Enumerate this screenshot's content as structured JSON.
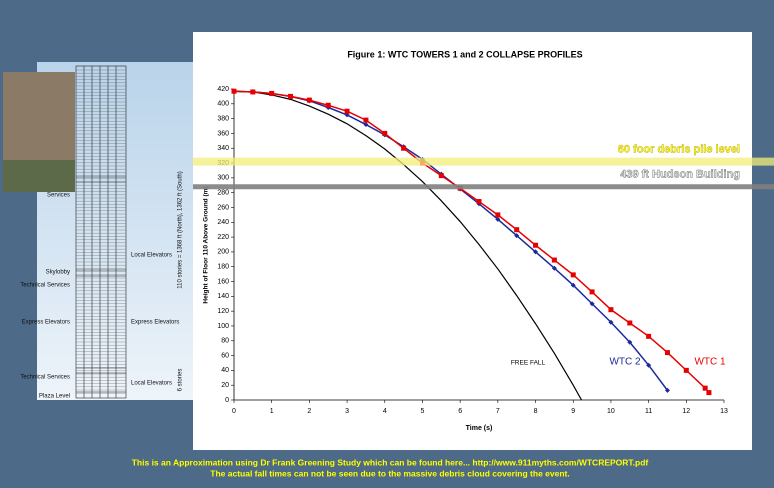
{
  "chart_data": {
    "type": "line",
    "title": "Figure 1: WTC TOWERS 1 and 2 COLLAPSE PROFILES",
    "xlabel": "Time (s)",
    "ylabel": "Height of Floor 110 Above Ground (m)",
    "xlim": [
      0,
      13
    ],
    "xticks": [
      0,
      1,
      2,
      3,
      4,
      5,
      6,
      7,
      8,
      9,
      10,
      11,
      12,
      13
    ],
    "ylim": [
      0,
      420
    ],
    "yticks": [
      0,
      20,
      40,
      60,
      80,
      100,
      120,
      140,
      160,
      180,
      200,
      220,
      240,
      260,
      280,
      300,
      320,
      340,
      360,
      380,
      400,
      420
    ],
    "series": [
      {
        "name": "FREE FALL",
        "color": "#000000",
        "marker": "none",
        "x": [
          0,
          0.5,
          1,
          1.5,
          2,
          2.5,
          3,
          3.5,
          4,
          4.5,
          5,
          5.5,
          6,
          6.5,
          7,
          7.5,
          8,
          8.5,
          9,
          9.22
        ],
        "values": [
          417,
          416,
          412,
          406,
          397,
          386,
          373,
          357,
          339,
          318,
          295,
          269,
          241,
          210,
          177,
          141,
          103,
          63,
          20,
          0
        ]
      },
      {
        "name": "WTC 2",
        "color": "#1c2a9c",
        "marker": "diamond",
        "x": [
          0,
          0.5,
          1,
          1.5,
          2,
          2.5,
          3,
          3.5,
          4,
          4.5,
          5,
          5.5,
          6,
          6.5,
          7,
          7.5,
          8,
          8.5,
          9,
          9.5,
          10,
          10.5,
          11,
          11.5
        ],
        "values": [
          417,
          416,
          414,
          410,
          404,
          395,
          385,
          372,
          358,
          342,
          325,
          305,
          285,
          265,
          244,
          222,
          200,
          178,
          155,
          130,
          105,
          78,
          47,
          13
        ]
      },
      {
        "name": "WTC 1",
        "color": "#e60000",
        "marker": "square",
        "x": [
          0,
          0.5,
          1,
          1.5,
          2,
          2.5,
          3,
          3.5,
          4,
          4.5,
          5,
          5.5,
          6,
          6.5,
          7,
          7.5,
          8,
          8.5,
          9,
          9.5,
          10,
          10.5,
          11,
          11.5,
          12,
          12.5,
          12.6
        ],
        "values": [
          417,
          416,
          414,
          410,
          405,
          398,
          390,
          378,
          360,
          340,
          320,
          303,
          286,
          268,
          250,
          230,
          209,
          189,
          169,
          146,
          122,
          104,
          86,
          64,
          40,
          16,
          10
        ]
      }
    ],
    "bands": [
      {
        "label": "60 foor debris pile level",
        "value": 322,
        "color": "#f3ee7a"
      },
      {
        "label": "439 ft Hudson Building",
        "value": 288,
        "color": "#808080"
      }
    ]
  },
  "diagram": {
    "height_label": "110 stories = 1368 ft (North), 1362 ft (South)",
    "base_label": "6 stories",
    "labels_left": [
      "Services",
      "Skylobby",
      "Technical Services",
      "Express Elevators",
      "Technical Services",
      "Plaza Level"
    ],
    "labels_right": [
      "Local Elevators",
      "Express Elevators",
      "Local Elevators"
    ]
  },
  "caption": [
    "This is an Approximation using Dr  Frank Greening Study which can be found here... http://www.911myths.com/WTCREPORT.pdf",
    "The actual fall times can not be seen due to the massive debris cloud covering the event."
  ]
}
